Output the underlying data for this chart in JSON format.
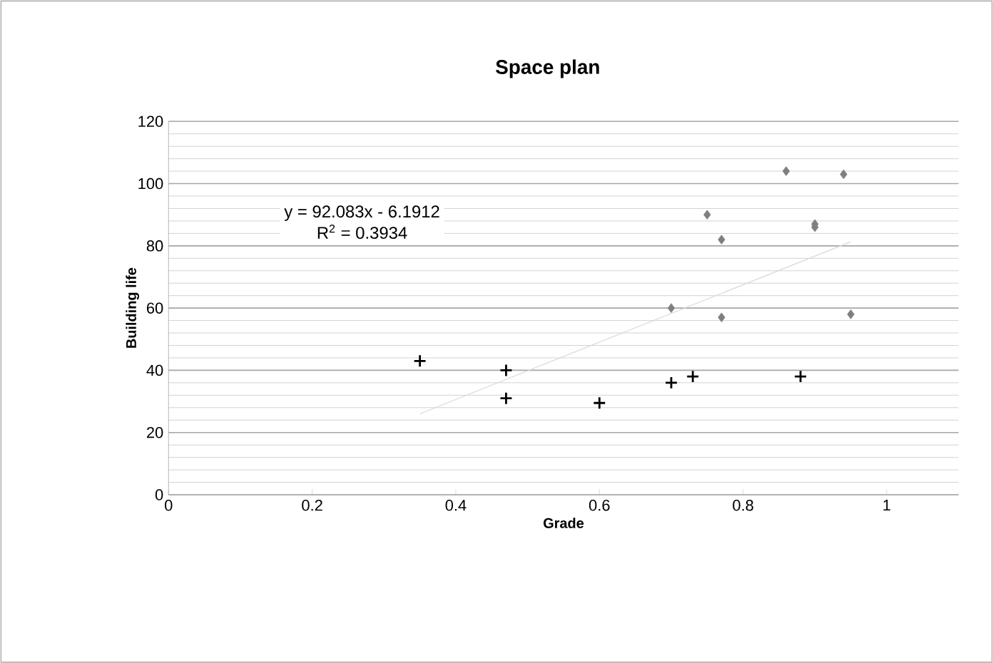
{
  "chart_data": {
    "type": "scatter",
    "title": "Space plan",
    "xlabel": "Grade",
    "ylabel": "Building life",
    "xlim": [
      0,
      1.1
    ],
    "xticks": [
      0,
      0.2,
      0.4,
      0.6,
      0.8,
      1
    ],
    "ylim": [
      0,
      120
    ],
    "yticks": [
      0,
      20,
      40,
      60,
      80,
      100,
      120
    ],
    "grid": "y",
    "annotations": [
      "y = 92.083x - 6.1912",
      "R$^{2}$ = 0.3934"
    ],
    "series": [
      {
        "color": "#000000",
        "marker": "cross",
        "x": [
          0.35,
          0.47,
          0.47,
          0.6,
          0.7,
          0.73,
          0.88
        ],
        "values": [
          43,
          40,
          31,
          29.5,
          36,
          38,
          38
        ]
      },
      {
        "color": "#7f7f7f",
        "marker": "diamond",
        "x": [
          0.7,
          0.75,
          0.77,
          0.77,
          0.86,
          0.9,
          0.9,
          0.94,
          0.95
        ],
        "values": [
          60,
          90,
          82,
          57,
          104,
          87,
          86,
          103,
          58
        ]
      },
      {
        "type": "line",
        "color": "#d9d9d9",
        "marker": "none",
        "x": [
          0.35,
          0.95
        ],
        "values": [
          26,
          81.3
        ]
      }
    ]
  }
}
